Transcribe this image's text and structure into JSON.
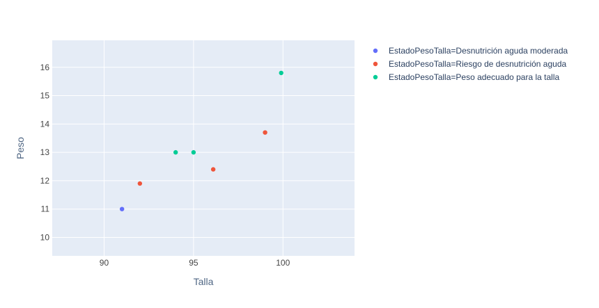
{
  "chart_data": {
    "type": "scatter",
    "title": "",
    "xlabel": "Talla",
    "ylabel": "Peso",
    "xlim": [
      87.1,
      104.0
    ],
    "ylim": [
      9.35,
      16.95
    ],
    "xticks": [
      90,
      95,
      100
    ],
    "yticks": [
      10,
      11,
      12,
      13,
      14,
      15,
      16
    ],
    "grid": true,
    "legend_position": "right",
    "series": [
      {
        "name": "EstadoPesoTalla=Desnutrición aguda moderada",
        "color": "#636efa",
        "points": [
          {
            "x": 91,
            "y": 11.0
          }
        ]
      },
      {
        "name": "EstadoPesoTalla=Riesgo de desnutrición aguda",
        "color": "#ef553b",
        "points": [
          {
            "x": 92,
            "y": 11.9
          },
          {
            "x": 96.1,
            "y": 12.4
          },
          {
            "x": 99,
            "y": 13.7
          }
        ]
      },
      {
        "name": "EstadoPesoTalla=Peso adecuado para la talla",
        "color": "#00cc96",
        "points": [
          {
            "x": 94,
            "y": 13.0
          },
          {
            "x": 95,
            "y": 13.0
          },
          {
            "x": 99.9,
            "y": 15.8
          }
        ]
      }
    ],
    "colors": {
      "plot_background": "#e5ecf6",
      "grid": "#ffffff"
    }
  }
}
